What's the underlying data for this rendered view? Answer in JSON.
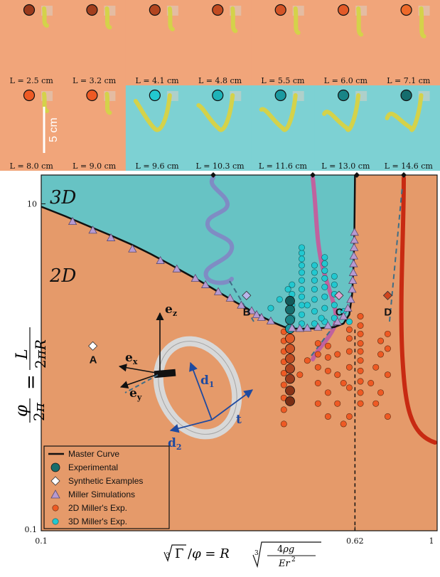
{
  "colors": {
    "orange_bg": "#f1a57a",
    "teal_bg": "#7dd1d3",
    "plot_orange": "#e59a6a",
    "plot_teal": "#67c3c4",
    "master_curve": "#111111",
    "experimental": "#176d6b",
    "miller_sim": "#b69ad0",
    "miller_2d": "#ee5a24",
    "miller_3d": "#22c8d0",
    "arrow_blue": "#1f4aa0",
    "rod_yellow": "#d4d24a",
    "helix_blue": "#8f9ed0",
    "helix_pink": "#c0629e",
    "helix_red": "#c82a12"
  },
  "photos": {
    "row1": [
      {
        "label": "L = 2.5 cm",
        "dot": "#9a3a1c"
      },
      {
        "label": "L = 3.2 cm",
        "dot": "#a33f1e"
      },
      {
        "label": "L = 4.1 cm",
        "dot": "#b24520"
      },
      {
        "label": "L = 4.8 cm",
        "dot": "#c24c22"
      },
      {
        "label": "L = 5.5 cm",
        "dot": "#d45426"
      },
      {
        "label": "L = 6.0 cm",
        "dot": "#e35a28"
      },
      {
        "label": "L = 7.1 cm",
        "dot": "#ee6a2a"
      }
    ],
    "row2": [
      {
        "label": "L = 8.0 cm",
        "dot": "#ee5a24",
        "bg": "orange"
      },
      {
        "label": "L = 9.0 cm",
        "dot": "#ee5a24",
        "bg": "orange"
      },
      {
        "label": "L = 9.6 cm",
        "dot": "#22c8d0",
        "bg": "teal"
      },
      {
        "label": "L = 10.3 cm",
        "dot": "#1fb3b8",
        "bg": "teal"
      },
      {
        "label": "L = 11.6 cm",
        "dot": "#1b9aa0",
        "bg": "teal"
      },
      {
        "label": "L = 13.0 cm",
        "dot": "#188486",
        "bg": "teal"
      },
      {
        "label": "L = 14.6 cm",
        "dot": "#156d6d",
        "bg": "teal"
      }
    ],
    "scale_label": "5 cm"
  },
  "chart_data": {
    "type": "scatter",
    "x_scale": "log",
    "y_scale": "log",
    "xlim": [
      0.1,
      1
    ],
    "ylim": [
      0.1,
      15
    ],
    "x_ticks": [
      {
        "v": 0.1,
        "label": "0.1"
      },
      {
        "v": 0.62,
        "label": "0.62"
      },
      {
        "v": 1,
        "label": "1"
      }
    ],
    "y_ticks": [
      {
        "v": 0.1,
        "label": "0.1"
      },
      {
        "v": 10,
        "label": "10"
      }
    ],
    "region_labels": {
      "top": "3D",
      "bottom": "2D"
    },
    "vline_x": 0.62,
    "master_curve": [
      [
        0.1,
        9.6
      ],
      [
        0.115,
        8.4
      ],
      [
        0.13,
        7.4
      ],
      [
        0.15,
        6.4
      ],
      [
        0.17,
        5.6
      ],
      [
        0.19,
        4.9
      ],
      [
        0.21,
        4.3
      ],
      [
        0.23,
        3.8
      ],
      [
        0.25,
        3.4
      ],
      [
        0.27,
        3.05
      ],
      [
        0.29,
        2.75
      ],
      [
        0.31,
        2.5
      ],
      [
        0.33,
        2.3
      ],
      [
        0.35,
        2.12
      ],
      [
        0.37,
        1.98
      ],
      [
        0.39,
        1.86
      ],
      [
        0.41,
        1.77
      ],
      [
        0.425,
        1.73
      ],
      [
        0.45,
        1.72
      ],
      [
        0.5,
        1.73
      ],
      [
        0.55,
        1.76
      ],
      [
        0.58,
        1.85
      ],
      [
        0.6,
        2.1
      ],
      [
        0.61,
        2.8
      ],
      [
        0.615,
        4.2
      ],
      [
        0.618,
        7.0
      ],
      [
        0.62,
        15
      ]
    ],
    "miller_simulations": [
      [
        0.12,
        7.8
      ],
      [
        0.135,
        6.9
      ],
      [
        0.15,
        6.2
      ],
      [
        0.17,
        5.3
      ],
      [
        0.2,
        4.5
      ],
      [
        0.22,
        4.0
      ],
      [
        0.245,
        3.5
      ],
      [
        0.26,
        3.2
      ],
      [
        0.28,
        2.9
      ],
      [
        0.3,
        2.65
      ],
      [
        0.32,
        2.4
      ],
      [
        0.34,
        2.22
      ],
      [
        0.35,
        2.1
      ],
      [
        0.36,
        2.02
      ],
      [
        0.38,
        1.92
      ],
      [
        0.43,
        1.74
      ],
      [
        0.45,
        1.73
      ],
      [
        0.47,
        1.74
      ],
      [
        0.5,
        1.76
      ],
      [
        0.53,
        1.8
      ],
      [
        0.56,
        1.9
      ],
      [
        0.58,
        2.05
      ],
      [
        0.595,
        2.3
      ],
      [
        0.605,
        2.6
      ],
      [
        0.61,
        3.0
      ],
      [
        0.612,
        3.4
      ],
      [
        0.614,
        3.8
      ],
      [
        0.615,
        4.3
      ],
      [
        0.616,
        4.8
      ],
      [
        0.617,
        5.4
      ],
      [
        0.618,
        6.0
      ],
      [
        0.6185,
        6.7
      ]
    ],
    "experimental": [
      [
        0.425,
        0.62
      ],
      [
        0.425,
        0.72
      ],
      [
        0.425,
        0.85
      ],
      [
        0.425,
        0.98
      ],
      [
        0.425,
        1.13
      ],
      [
        0.425,
        1.3
      ],
      [
        0.425,
        1.5
      ],
      [
        0.425,
        1.72
      ],
      [
        0.425,
        1.95
      ],
      [
        0.425,
        2.25
      ],
      [
        0.425,
        2.55
      ]
    ],
    "miller_2d": [
      [
        0.41,
        0.45
      ],
      [
        0.41,
        0.55
      ],
      [
        0.41,
        0.65
      ],
      [
        0.41,
        0.78
      ],
      [
        0.41,
        0.92
      ],
      [
        0.41,
        1.08
      ],
      [
        0.41,
        1.25
      ],
      [
        0.41,
        1.45
      ],
      [
        0.41,
        1.65
      ],
      [
        0.45,
        0.9
      ],
      [
        0.47,
        1.1
      ],
      [
        0.5,
        0.6
      ],
      [
        0.5,
        0.8
      ],
      [
        0.5,
        1.0
      ],
      [
        0.5,
        1.2
      ],
      [
        0.5,
        1.4
      ],
      [
        0.53,
        0.5
      ],
      [
        0.53,
        0.7
      ],
      [
        0.53,
        0.95
      ],
      [
        0.53,
        1.15
      ],
      [
        0.53,
        1.35
      ],
      [
        0.56,
        0.6
      ],
      [
        0.56,
        0.9
      ],
      [
        0.56,
        1.2
      ],
      [
        0.58,
        0.45
      ],
      [
        0.58,
        0.8
      ],
      [
        0.6,
        0.5
      ],
      [
        0.6,
        0.75
      ],
      [
        0.6,
        1.0
      ],
      [
        0.6,
        1.25
      ],
      [
        0.6,
        1.5
      ],
      [
        0.6,
        1.7
      ],
      [
        0.64,
        0.6
      ],
      [
        0.64,
        0.7
      ],
      [
        0.64,
        0.82
      ],
      [
        0.64,
        0.95
      ],
      [
        0.64,
        1.1
      ],
      [
        0.64,
        1.25
      ],
      [
        0.64,
        1.4
      ],
      [
        0.64,
        1.6
      ],
      [
        0.64,
        1.8
      ],
      [
        0.64,
        2.05
      ],
      [
        0.68,
        0.8
      ],
      [
        0.7,
        0.6
      ],
      [
        0.7,
        1.0
      ],
      [
        0.72,
        0.7
      ],
      [
        0.72,
        1.2
      ],
      [
        0.72,
        1.45
      ],
      [
        0.75,
        0.5
      ],
      [
        0.75,
        0.9
      ],
      [
        0.75,
        1.3
      ],
      [
        0.75,
        1.6
      ]
    ],
    "miller_3d": [
      [
        0.43,
        2.0
      ],
      [
        0.43,
        2.4
      ],
      [
        0.43,
        2.8
      ],
      [
        0.43,
        3.2
      ],
      [
        0.455,
        1.85
      ],
      [
        0.455,
        2.1
      ],
      [
        0.455,
        2.4
      ],
      [
        0.455,
        2.7
      ],
      [
        0.455,
        3.0
      ],
      [
        0.455,
        3.4
      ],
      [
        0.455,
        3.8
      ],
      [
        0.455,
        4.2
      ],
      [
        0.455,
        4.6
      ],
      [
        0.455,
        5.0
      ],
      [
        0.455,
        5.4
      ],
      [
        0.49,
        1.85
      ],
      [
        0.49,
        2.2
      ],
      [
        0.49,
        2.6
      ],
      [
        0.49,
        3.0
      ],
      [
        0.49,
        3.4
      ],
      [
        0.49,
        3.8
      ],
      [
        0.49,
        4.2
      ],
      [
        0.52,
        1.9
      ],
      [
        0.52,
        2.3
      ],
      [
        0.52,
        2.7
      ],
      [
        0.52,
        3.1
      ],
      [
        0.52,
        3.5
      ],
      [
        0.52,
        3.9
      ],
      [
        0.52,
        4.3
      ],
      [
        0.52,
        4.7
      ],
      [
        0.55,
        2.0
      ],
      [
        0.55,
        2.4
      ],
      [
        0.55,
        2.8
      ],
      [
        0.55,
        3.2
      ],
      [
        0.55,
        3.6
      ],
      [
        0.38,
        2.3
      ],
      [
        0.4,
        2.6
      ],
      [
        0.42,
        3.0
      ],
      [
        0.47,
        2.4
      ],
      [
        0.51,
        2.0
      ],
      [
        0.58,
        2.2
      ],
      [
        0.6,
        1.9
      ]
    ],
    "synthetic_examples": [
      {
        "x": 0.135,
        "y": 1.35,
        "label": "A"
      },
      {
        "x": 0.33,
        "y": 2.75,
        "label": "B"
      },
      {
        "x": 0.565,
        "y": 2.75,
        "label": "C"
      },
      {
        "x": 0.75,
        "y": 2.75,
        "label": "D"
      }
    ],
    "legend": [
      {
        "name": "Master Curve",
        "kind": "line"
      },
      {
        "name": "Experimental",
        "kind": "circle"
      },
      {
        "name": "Synthetic Examples",
        "kind": "diamond"
      },
      {
        "name": "Miller Simulations",
        "kind": "triangle"
      },
      {
        "name": "2D Miller's Exp.",
        "kind": "small-orange"
      },
      {
        "name": "3D Miller's Exp.",
        "kind": "small-teal"
      }
    ],
    "frame_labels": {
      "ex": "e",
      "ex_sub": "x",
      "ey": "e",
      "ey_sub": "y",
      "ez": "e",
      "ez_sub": "z",
      "d1": "d",
      "d1_sub": "1",
      "d2": "d",
      "d2_sub": "2",
      "t": "t"
    }
  }
}
